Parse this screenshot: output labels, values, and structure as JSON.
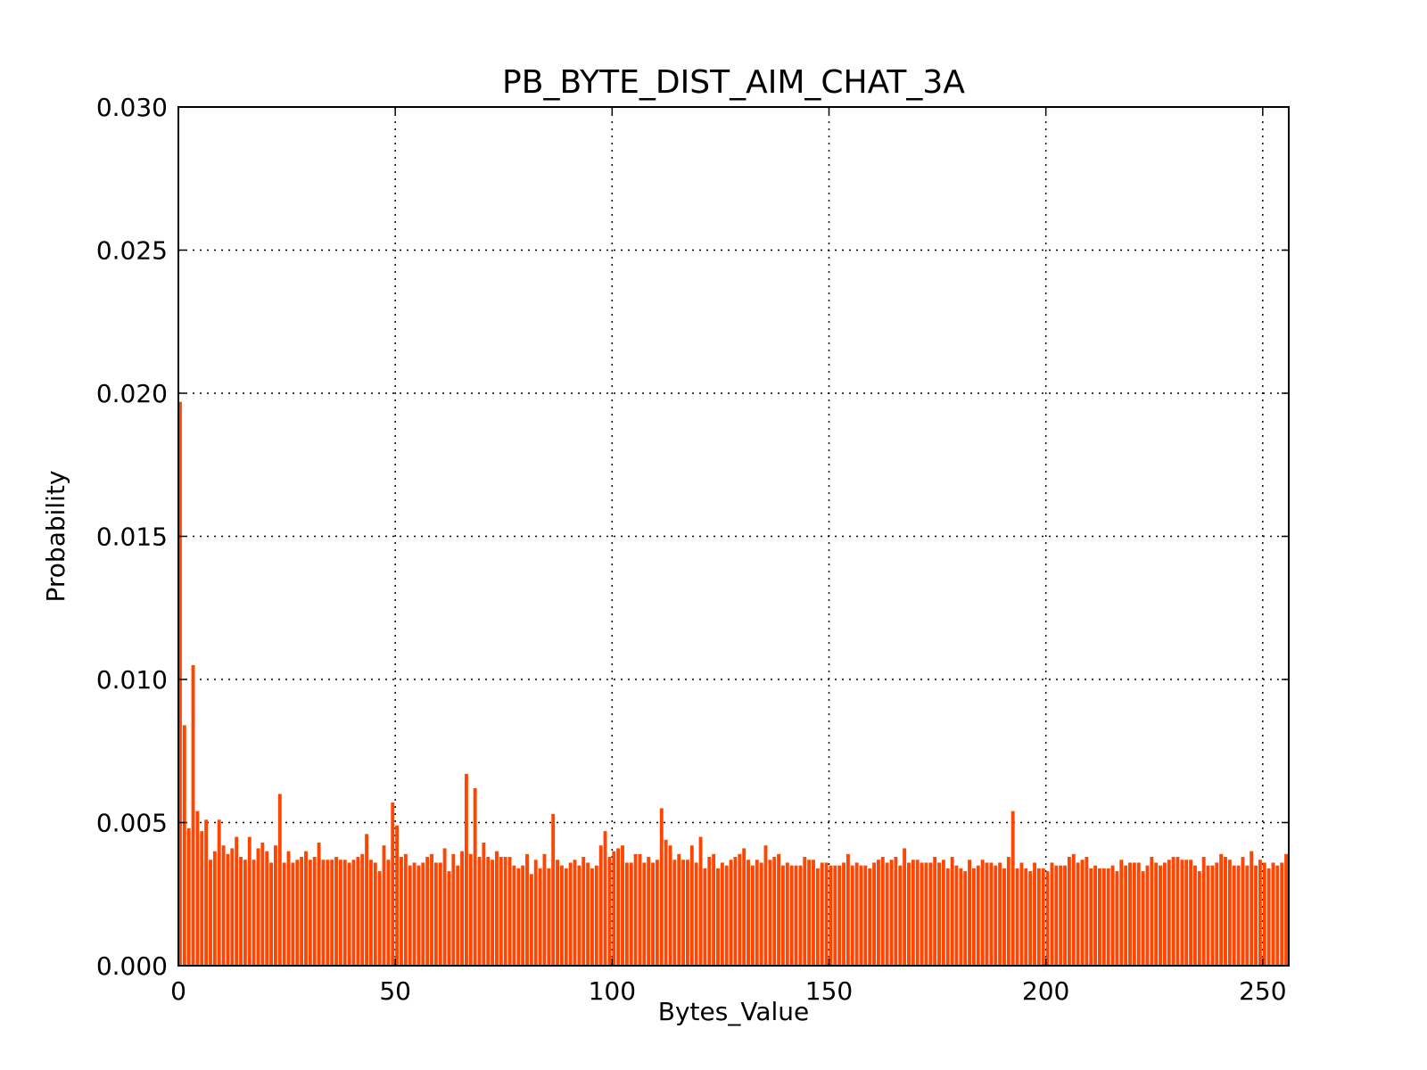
{
  "chart_data": {
    "type": "bar",
    "title": "PB_BYTE_DIST_AIM_CHAT_3A",
    "xlabel": "Bytes_Value",
    "ylabel": "Probability",
    "xlim": [
      0,
      256
    ],
    "ylim": [
      0,
      0.03
    ],
    "xticks": [
      0,
      50,
      100,
      150,
      200,
      250
    ],
    "xtick_labels": [
      "0",
      "50",
      "100",
      "150",
      "200",
      "250"
    ],
    "yticks": [
      0,
      0.005,
      0.01,
      0.015,
      0.02,
      0.025,
      0.03
    ],
    "ytick_labels": [
      "0.000",
      "0.005",
      "0.010",
      "0.015",
      "0.020",
      "0.025",
      "0.030"
    ],
    "grid": true,
    "bar_color": "#ff4500",
    "x": [
      0,
      1,
      2,
      3,
      4,
      5,
      6,
      7,
      8,
      9,
      10,
      11,
      12,
      13,
      14,
      15,
      16,
      17,
      18,
      19,
      20,
      21,
      22,
      23,
      24,
      25,
      26,
      27,
      28,
      29,
      30,
      31,
      32,
      33,
      34,
      35,
      36,
      37,
      38,
      39,
      40,
      41,
      42,
      43,
      44,
      45,
      46,
      47,
      48,
      49,
      50,
      51,
      52,
      53,
      54,
      55,
      56,
      57,
      58,
      59,
      60,
      61,
      62,
      63,
      64,
      65,
      66,
      67,
      68,
      69,
      70,
      71,
      72,
      73,
      74,
      75,
      76,
      77,
      78,
      79,
      80,
      81,
      82,
      83,
      84,
      85,
      86,
      87,
      88,
      89,
      90,
      91,
      92,
      93,
      94,
      95,
      96,
      97,
      98,
      99,
      100,
      101,
      102,
      103,
      104,
      105,
      106,
      107,
      108,
      109,
      110,
      111,
      112,
      113,
      114,
      115,
      116,
      117,
      118,
      119,
      120,
      121,
      122,
      123,
      124,
      125,
      126,
      127,
      128,
      129,
      130,
      131,
      132,
      133,
      134,
      135,
      136,
      137,
      138,
      139,
      140,
      141,
      142,
      143,
      144,
      145,
      146,
      147,
      148,
      149,
      150,
      151,
      152,
      153,
      154,
      155,
      156,
      157,
      158,
      159,
      160,
      161,
      162,
      163,
      164,
      165,
      166,
      167,
      168,
      169,
      170,
      171,
      172,
      173,
      174,
      175,
      176,
      177,
      178,
      179,
      180,
      181,
      182,
      183,
      184,
      185,
      186,
      187,
      188,
      189,
      190,
      191,
      192,
      193,
      194,
      195,
      196,
      197,
      198,
      199,
      200,
      201,
      202,
      203,
      204,
      205,
      206,
      207,
      208,
      209,
      210,
      211,
      212,
      213,
      214,
      215,
      216,
      217,
      218,
      219,
      220,
      221,
      222,
      223,
      224,
      225,
      226,
      227,
      228,
      229,
      230,
      231,
      232,
      233,
      234,
      235,
      236,
      237,
      238,
      239,
      240,
      241,
      242,
      243,
      244,
      245,
      246,
      247,
      248,
      249,
      250,
      251,
      252,
      253,
      254,
      255
    ],
    "values": [
      0.0197,
      0.0084,
      0.0048,
      0.0105,
      0.0054,
      0.0047,
      0.0051,
      0.0037,
      0.004,
      0.0051,
      0.0042,
      0.0039,
      0.0041,
      0.0045,
      0.0038,
      0.0037,
      0.0045,
      0.0037,
      0.0041,
      0.0043,
      0.004,
      0.0036,
      0.0042,
      0.006,
      0.0036,
      0.004,
      0.0036,
      0.0037,
      0.0038,
      0.004,
      0.0037,
      0.0038,
      0.0043,
      0.0037,
      0.0037,
      0.0037,
      0.0038,
      0.0037,
      0.0037,
      0.0036,
      0.0037,
      0.0038,
      0.0039,
      0.0046,
      0.0037,
      0.0036,
      0.0033,
      0.0042,
      0.0037,
      0.0057,
      0.0049,
      0.0038,
      0.0039,
      0.0035,
      0.0036,
      0.0035,
      0.0036,
      0.0038,
      0.0039,
      0.0036,
      0.0036,
      0.0041,
      0.0033,
      0.0039,
      0.0035,
      0.004,
      0.0067,
      0.0039,
      0.0062,
      0.0038,
      0.0043,
      0.0038,
      0.0037,
      0.004,
      0.0038,
      0.0038,
      0.0038,
      0.0035,
      0.0034,
      0.0035,
      0.0039,
      0.0032,
      0.0037,
      0.0034,
      0.0039,
      0.0034,
      0.0053,
      0.0037,
      0.0035,
      0.0034,
      0.0036,
      0.0037,
      0.0035,
      0.0038,
      0.0036,
      0.0034,
      0.0035,
      0.0042,
      0.0047,
      0.0038,
      0.004,
      0.0041,
      0.0042,
      0.0036,
      0.0036,
      0.0039,
      0.0039,
      0.0036,
      0.0038,
      0.0036,
      0.0037,
      0.0055,
      0.0044,
      0.0042,
      0.0037,
      0.0039,
      0.0037,
      0.0037,
      0.0042,
      0.0036,
      0.0045,
      0.0034,
      0.0038,
      0.0039,
      0.0034,
      0.0036,
      0.0035,
      0.0037,
      0.0038,
      0.0039,
      0.0041,
      0.0037,
      0.0035,
      0.0037,
      0.0036,
      0.0042,
      0.0037,
      0.0038,
      0.0039,
      0.0035,
      0.0036,
      0.0035,
      0.0035,
      0.0035,
      0.0038,
      0.0037,
      0.0037,
      0.0034,
      0.0036,
      0.0036,
      0.0035,
      0.0035,
      0.0035,
      0.0036,
      0.0039,
      0.0035,
      0.0036,
      0.0035,
      0.0035,
      0.0034,
      0.0036,
      0.0037,
      0.0038,
      0.0036,
      0.0037,
      0.0038,
      0.0035,
      0.0041,
      0.0036,
      0.0037,
      0.0037,
      0.0036,
      0.0036,
      0.0036,
      0.0038,
      0.0036,
      0.0037,
      0.0034,
      0.0038,
      0.0035,
      0.0034,
      0.0033,
      0.0037,
      0.0034,
      0.0035,
      0.0037,
      0.0036,
      0.0036,
      0.0035,
      0.0036,
      0.0034,
      0.0038,
      0.0054,
      0.0034,
      0.0036,
      0.0034,
      0.0033,
      0.0036,
      0.0034,
      0.0034,
      0.0033,
      0.0036,
      0.0035,
      0.0035,
      0.0035,
      0.0038,
      0.0039,
      0.0036,
      0.0037,
      0.0038,
      0.0034,
      0.0035,
      0.0034,
      0.0034,
      0.0034,
      0.0035,
      0.0033,
      0.0037,
      0.0035,
      0.0036,
      0.0036,
      0.0036,
      0.0033,
      0.0035,
      0.0038,
      0.0036,
      0.0035,
      0.0036,
      0.0037,
      0.0038,
      0.0038,
      0.0037,
      0.0037,
      0.0037,
      0.0035,
      0.0033,
      0.0038,
      0.0035,
      0.0035,
      0.0036,
      0.0039,
      0.0038,
      0.0037,
      0.0035,
      0.0035,
      0.0038,
      0.0035,
      0.004,
      0.0035,
      0.0037,
      0.0036,
      0.0034,
      0.0036,
      0.0035,
      0.0036,
      0.0039
    ]
  }
}
